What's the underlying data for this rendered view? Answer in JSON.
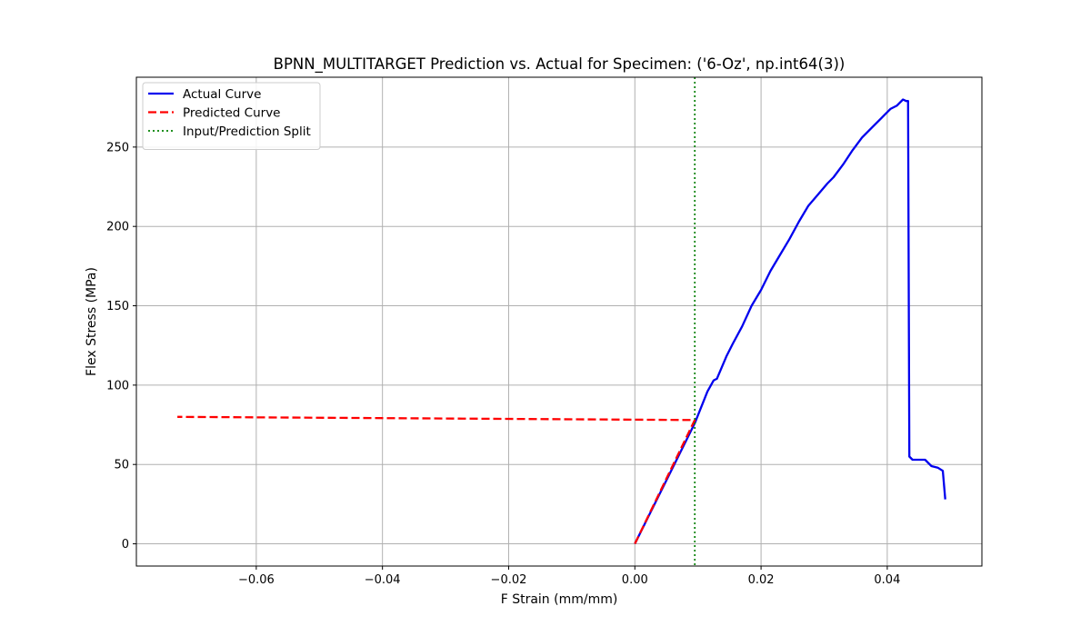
{
  "chart_data": {
    "type": "line",
    "title": "BPNN_MULTITARGET Prediction vs. Actual for Specimen: ('6-Oz', np.int64(3))",
    "xlabel": "F Strain (mm/mm)",
    "ylabel": "Flex Stress (MPa)",
    "xlim": [
      -0.079,
      0.055
    ],
    "ylim": [
      -14,
      294
    ],
    "grid": true,
    "legend_position": "upper-left",
    "x_ticks": [
      -0.06,
      -0.04,
      -0.02,
      0.0,
      0.02,
      0.04
    ],
    "x_tick_labels": [
      "−0.06",
      "−0.04",
      "−0.02",
      "0.00",
      "0.02",
      "0.04"
    ],
    "y_ticks": [
      0,
      50,
      100,
      150,
      200,
      250
    ],
    "y_tick_labels": [
      "0",
      "50",
      "100",
      "150",
      "200",
      "250"
    ],
    "series": [
      {
        "name": "Actual Curve",
        "color": "#0000ee",
        "style": "solid",
        "points": [
          [
            0.0,
            0
          ],
          [
            0.0095,
            76
          ],
          [
            0.0115,
            96
          ],
          [
            0.0125,
            103
          ],
          [
            0.013,
            104
          ],
          [
            0.0145,
            118
          ],
          [
            0.0155,
            126
          ],
          [
            0.017,
            137
          ],
          [
            0.0185,
            150
          ],
          [
            0.02,
            160
          ],
          [
            0.0215,
            172
          ],
          [
            0.023,
            182
          ],
          [
            0.0245,
            192
          ],
          [
            0.026,
            203
          ],
          [
            0.0275,
            213
          ],
          [
            0.029,
            220
          ],
          [
            0.0305,
            227
          ],
          [
            0.0315,
            231
          ],
          [
            0.033,
            239
          ],
          [
            0.0345,
            248
          ],
          [
            0.036,
            256
          ],
          [
            0.0375,
            262
          ],
          [
            0.039,
            268
          ],
          [
            0.0405,
            274
          ],
          [
            0.0415,
            276
          ],
          [
            0.0425,
            280
          ],
          [
            0.043,
            279
          ],
          [
            0.0433,
            279
          ],
          [
            0.0435,
            55
          ],
          [
            0.044,
            53
          ],
          [
            0.046,
            53
          ],
          [
            0.047,
            49
          ],
          [
            0.048,
            48
          ],
          [
            0.0488,
            46
          ],
          [
            0.0492,
            28
          ]
        ]
      },
      {
        "name": "Predicted Curve",
        "color": "#ff0000",
        "style": "dashed",
        "points": [
          [
            0.0,
            0
          ],
          [
            0.0095,
            78
          ],
          [
            -0.0725,
            80
          ]
        ]
      },
      {
        "name": "Input/Prediction Split",
        "color": "#008000",
        "style": "dotted",
        "vline_x": 0.0095
      }
    ]
  }
}
